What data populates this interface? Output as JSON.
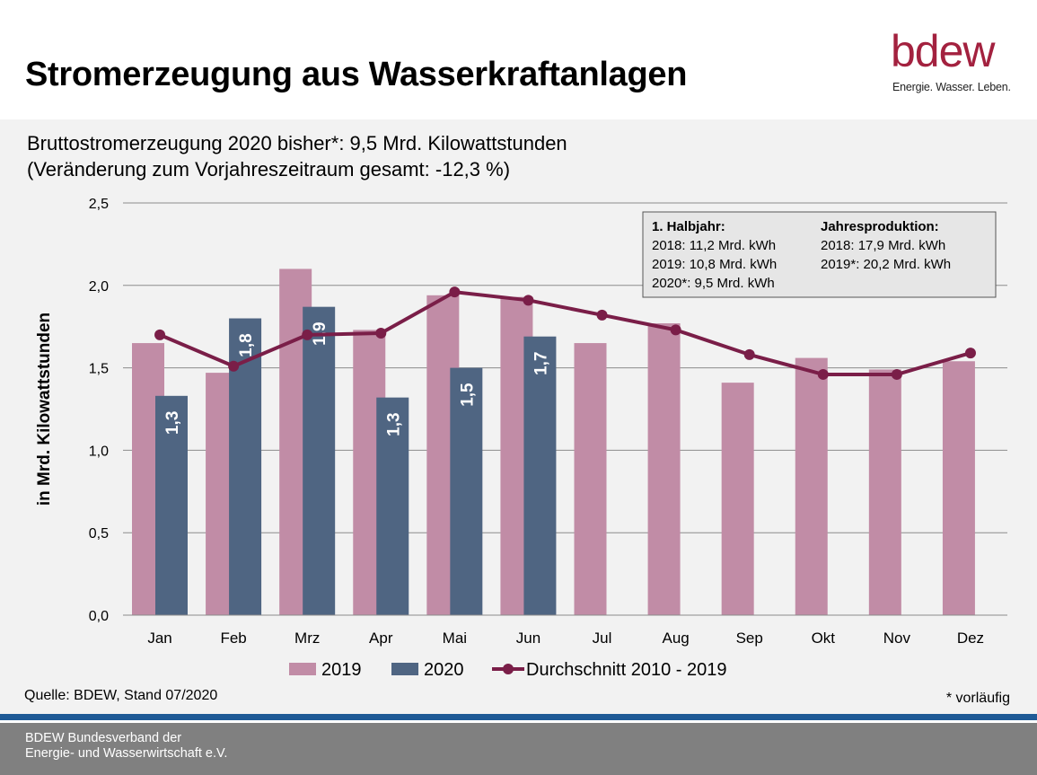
{
  "header": {
    "title": "Stromerzeugung aus Wasserkraftanlagen",
    "logo_text": "bdew",
    "logo_tagline": "Energie. Wasser. Leben.",
    "logo_color": "#a3213f"
  },
  "subtitle": {
    "line1": "Bruttostromerzeugung 2020 bisher*: 9,5 Mrd. Kilowattstunden",
    "line2": "(Veränderung zum Vorjahreszeitraum gesamt: -12,3 %)"
  },
  "infobox": {
    "col1_title": "1. Halbjahr:",
    "col1_rows": [
      "2018:  11,2 Mrd. kWh",
      "2019:  10,8 Mrd. kWh",
      "2020*:  9,5 Mrd. kWh"
    ],
    "col2_title": "Jahresproduktion:",
    "col2_rows": [
      "2018:    17,9 Mrd. kWh",
      "2019*:  20,2 Mrd. kWh"
    ]
  },
  "chart_data": {
    "type": "bar",
    "categories": [
      "Jan",
      "Feb",
      "Mrz",
      "Apr",
      "Mai",
      "Jun",
      "Jul",
      "Aug",
      "Sep",
      "Okt",
      "Nov",
      "Dez"
    ],
    "series": [
      {
        "name": "2019",
        "type": "bar",
        "color": "#c18ca6",
        "values": [
          1.65,
          1.47,
          2.1,
          1.73,
          1.94,
          1.93,
          1.65,
          1.77,
          1.41,
          1.56,
          1.49,
          1.54
        ]
      },
      {
        "name": "2020",
        "type": "bar",
        "color": "#4f6582",
        "values": [
          1.33,
          1.8,
          1.87,
          1.32,
          1.5,
          1.69,
          null,
          null,
          null,
          null,
          null,
          null
        ],
        "data_labels": [
          "1,3",
          "1,8",
          "1,9",
          "1,3",
          "1,5",
          "1,7"
        ]
      },
      {
        "name": "Durchschnitt 2010 - 2019",
        "type": "line",
        "color": "#7a1e48",
        "values": [
          1.7,
          1.51,
          1.7,
          1.71,
          1.96,
          1.91,
          1.82,
          1.73,
          1.58,
          1.46,
          1.46,
          1.59
        ]
      }
    ],
    "ylabel": "in Mrd. Kilowattstunden",
    "ylim": [
      0,
      2.5
    ],
    "yticks": [
      "0,0",
      "0,5",
      "1,0",
      "1,5",
      "2,0",
      "2,5"
    ],
    "grid": true,
    "legend_position": "bottom"
  },
  "source": "Quelle: BDEW, Stand 07/2020",
  "footnote": "* vorläufig",
  "footer": {
    "text": "BDEW Bundesverband der\nEnergie- und Wasserwirtschaft e.V."
  }
}
